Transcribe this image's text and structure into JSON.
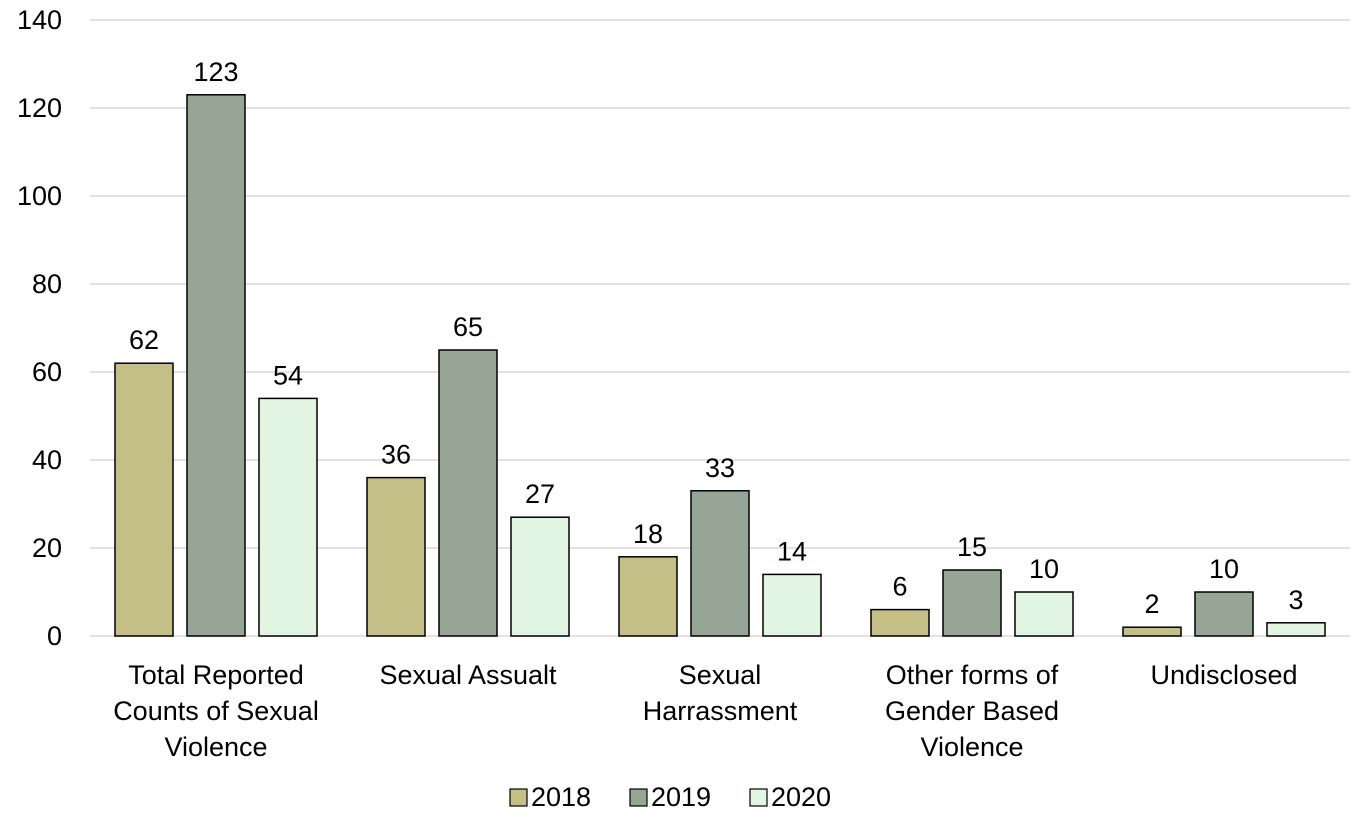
{
  "chart_data": {
    "type": "bar",
    "categories": [
      [
        "Total Reported",
        "Counts of Sexual",
        "Violence"
      ],
      [
        "Sexual Assualt"
      ],
      [
        "Sexual",
        "Harrassment"
      ],
      [
        "Other forms of",
        "Gender Based",
        "Violence"
      ],
      [
        "Undisclosed"
      ]
    ],
    "series": [
      {
        "name": "2018",
        "color": "#c3bf87",
        "values": [
          62,
          36,
          18,
          6,
          2
        ]
      },
      {
        "name": "2019",
        "color": "#96a596",
        "values": [
          123,
          65,
          33,
          15,
          10
        ]
      },
      {
        "name": "2020",
        "color": "#e2f4e2",
        "values": [
          54,
          27,
          14,
          10,
          3
        ]
      }
    ],
    "y_ticks": [
      "0",
      "20",
      "40",
      "60",
      "80",
      "100",
      "120",
      "140"
    ],
    "ylim": [
      0,
      140
    ],
    "grid": true,
    "legend_position": "bottom",
    "bar_outline": "#000000",
    "grid_color": "#d9d9d9"
  }
}
